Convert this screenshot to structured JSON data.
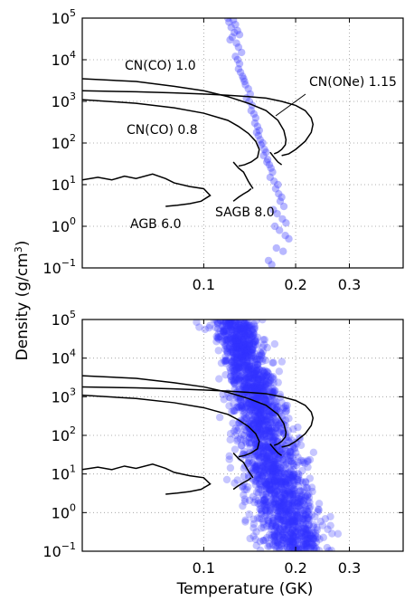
{
  "figure": {
    "ylabel_main": "Density (g/cm",
    "ylabel_sup": "3",
    "ylabel_tail": ")",
    "xlabel": "Temperature (GK)"
  },
  "chart_data": [
    {
      "type": "scatter",
      "panel": "top",
      "xscale": "log",
      "yscale": "log",
      "xlim": [
        0.04,
        0.45
      ],
      "ylim": [
        0.1,
        100000
      ],
      "grid": true,
      "x_ticks": [
        "0.1",
        "0.2",
        "0.3"
      ],
      "y_ticks": [
        {
          "base": "10",
          "exp": "5"
        },
        {
          "base": "10",
          "exp": "4"
        },
        {
          "base": "10",
          "exp": "3"
        },
        {
          "base": "10",
          "exp": "2"
        },
        {
          "base": "10",
          "exp": "1"
        },
        {
          "base": "10",
          "exp": "0"
        },
        {
          "base": "10",
          "exp": "−1"
        }
      ],
      "point_color": "#3333ff",
      "series": [
        {
          "kind": "points",
          "x": [
            0.12,
            0.121,
            0.123,
            0.125,
            0.127,
            0.129,
            0.131,
            0.122,
            0.126,
            0.128,
            0.124,
            0.13,
            0.133,
            0.127,
            0.129,
            0.131,
            0.13,
            0.132,
            0.134,
            0.136,
            0.135,
            0.137,
            0.14,
            0.142,
            0.138,
            0.141,
            0.144,
            0.143,
            0.146,
            0.148,
            0.147,
            0.15,
            0.152,
            0.149,
            0.151,
            0.153,
            0.156,
            0.154,
            0.158,
            0.16,
            0.157,
            0.162,
            0.161,
            0.164,
            0.166,
            0.168,
            0.165,
            0.17,
            0.175,
            0.172,
            0.176,
            0.18,
            0.178,
            0.183,
            0.169,
            0.174,
            0.181,
            0.186,
            0.171,
            0.177,
            0.185,
            0.19,
            0.173,
            0.182,
            0.163,
            0.167
          ],
          "y": [
            100000,
            80000,
            60000,
            90000,
            70000,
            50000,
            40000,
            30000,
            45000,
            25000,
            35000,
            20000,
            15000,
            12000,
            10000,
            8000,
            6000,
            5000,
            4000,
            3000,
            3500,
            2500,
            2000,
            1500,
            1200,
            1000,
            800,
            600,
            500,
            400,
            300,
            250,
            200,
            180,
            150,
            120,
            100,
            90,
            70,
            60,
            50,
            40,
            35,
            30,
            25,
            20,
            15,
            12,
            10,
            8,
            6,
            5,
            4,
            3,
            2.5,
            2,
            1.5,
            1.2,
            1,
            0.8,
            0.6,
            0.5,
            0.3,
            0.25,
            0.15,
            0.12
          ]
        },
        {
          "kind": "curve",
          "label": "CN(CO) 1.0",
          "x": [
            0.04,
            0.06,
            0.08,
            0.1,
            0.12,
            0.14,
            0.16,
            0.175,
            0.183,
            0.186,
            0.185,
            0.18,
            0.175,
            0.17
          ],
          "y": [
            3500,
            3000,
            2300,
            1800,
            1300,
            900,
            600,
            350,
            200,
            120,
            90,
            70,
            60,
            55
          ]
        },
        {
          "kind": "curve",
          "label": "CN(ONe) 1.15",
          "x": [
            0.04,
            0.06,
            0.08,
            0.1,
            0.12,
            0.14,
            0.16,
            0.18,
            0.2,
            0.215,
            0.225,
            0.228,
            0.225,
            0.215,
            0.2,
            0.19,
            0.18
          ],
          "y": [
            1800,
            1700,
            1600,
            1500,
            1400,
            1300,
            1200,
            1000,
            800,
            600,
            400,
            280,
            180,
            110,
            70,
            55,
            50
          ],
          "annotation": true
        },
        {
          "kind": "curve",
          "label": "CN(CO) 0.8",
          "x": [
            0.04,
            0.06,
            0.08,
            0.1,
            0.12,
            0.13,
            0.14,
            0.148,
            0.152,
            0.15,
            0.143,
            0.136,
            0.13
          ],
          "y": [
            1100,
            900,
            700,
            520,
            350,
            250,
            170,
            110,
            70,
            45,
            35,
            30,
            28
          ]
        },
        {
          "kind": "curve",
          "label": "",
          "x": [
            0.125,
            0.13,
            0.135,
            0.14,
            0.145
          ],
          "y": [
            35,
            25,
            20,
            12,
            8
          ]
        },
        {
          "kind": "curve",
          "label": "",
          "x": [
            0.165,
            0.17,
            0.175,
            0.18
          ],
          "y": [
            60,
            45,
            35,
            30
          ]
        },
        {
          "kind": "curve",
          "label": "AGB 6.0",
          "x": [
            0.04,
            0.045,
            0.05,
            0.055,
            0.06,
            0.068,
            0.075,
            0.08,
            0.09,
            0.1,
            0.105,
            0.098,
            0.09,
            0.082,
            0.075
          ],
          "y": [
            13,
            15,
            13,
            16,
            14,
            18,
            14,
            11,
            9,
            8,
            5.5,
            4,
            3.5,
            3.2,
            3
          ]
        },
        {
          "kind": "curve",
          "label": "SAGB 8.0",
          "x": [
            0.125,
            0.13,
            0.135,
            0.14,
            0.143
          ],
          "y": [
            4,
            5,
            6,
            7,
            8
          ]
        }
      ],
      "labels": [
        "CN(CO) 1.0",
        "CN(ONe) 1.15",
        "CN(CO) 0.8",
        "AGB 6.0",
        "SAGB 8.0"
      ]
    },
    {
      "type": "scatter",
      "panel": "bottom",
      "xscale": "log",
      "yscale": "log",
      "xlim": [
        0.04,
        0.45
      ],
      "ylim": [
        0.1,
        100000
      ],
      "grid": true,
      "x_ticks": [
        "0.1",
        "0.2",
        "0.3"
      ],
      "y_ticks": [
        {
          "base": "10",
          "exp": "5"
        },
        {
          "base": "10",
          "exp": "4"
        },
        {
          "base": "10",
          "exp": "3"
        },
        {
          "base": "10",
          "exp": "2"
        },
        {
          "base": "10",
          "exp": "1"
        },
        {
          "base": "10",
          "exp": "0"
        },
        {
          "base": "10",
          "exp": "−1"
        }
      ],
      "point_color": "#3333ff",
      "point_band": {
        "description": "dense band of many points from (0.115, 1e5) down to (0.2, 0.1)",
        "center_x_at_ymax": 0.125,
        "center_x_at_ymin": 0.2,
        "n_points": 2200
      },
      "series": [
        {
          "kind": "curve",
          "label": "",
          "x": [
            0.04,
            0.06,
            0.08,
            0.1,
            0.12,
            0.14,
            0.16,
            0.175,
            0.183,
            0.186,
            0.185,
            0.18,
            0.175,
            0.17
          ],
          "y": [
            3500,
            3000,
            2300,
            1800,
            1300,
            900,
            600,
            350,
            200,
            120,
            90,
            70,
            60,
            55
          ]
        },
        {
          "kind": "curve",
          "label": "",
          "x": [
            0.04,
            0.06,
            0.08,
            0.1,
            0.12,
            0.14,
            0.16,
            0.18,
            0.2,
            0.215,
            0.225,
            0.228,
            0.225,
            0.215,
            0.2,
            0.19,
            0.18
          ],
          "y": [
            1800,
            1700,
            1600,
            1500,
            1400,
            1300,
            1200,
            1000,
            800,
            600,
            400,
            280,
            180,
            110,
            70,
            55,
            50
          ]
        },
        {
          "kind": "curve",
          "label": "",
          "x": [
            0.04,
            0.06,
            0.08,
            0.1,
            0.12,
            0.13,
            0.14,
            0.148,
            0.152,
            0.15,
            0.143,
            0.136,
            0.13
          ],
          "y": [
            1100,
            900,
            700,
            520,
            350,
            250,
            170,
            110,
            70,
            45,
            35,
            30,
            28
          ]
        },
        {
          "kind": "curve",
          "label": "",
          "x": [
            0.125,
            0.13,
            0.135,
            0.14,
            0.145
          ],
          "y": [
            35,
            25,
            20,
            12,
            8
          ]
        },
        {
          "kind": "curve",
          "label": "",
          "x": [
            0.165,
            0.17,
            0.175,
            0.18
          ],
          "y": [
            60,
            45,
            35,
            30
          ]
        },
        {
          "kind": "curve",
          "label": "",
          "x": [
            0.04,
            0.045,
            0.05,
            0.055,
            0.06,
            0.068,
            0.075,
            0.08,
            0.09,
            0.1,
            0.105,
            0.098,
            0.09,
            0.082,
            0.075
          ],
          "y": [
            13,
            15,
            13,
            16,
            14,
            18,
            14,
            11,
            9,
            8,
            5.5,
            4,
            3.5,
            3.2,
            3
          ]
        },
        {
          "kind": "curve",
          "label": "",
          "x": [
            0.125,
            0.13,
            0.135,
            0.14,
            0.143
          ],
          "y": [
            4,
            5,
            6,
            7,
            8
          ]
        }
      ],
      "labels": []
    }
  ]
}
